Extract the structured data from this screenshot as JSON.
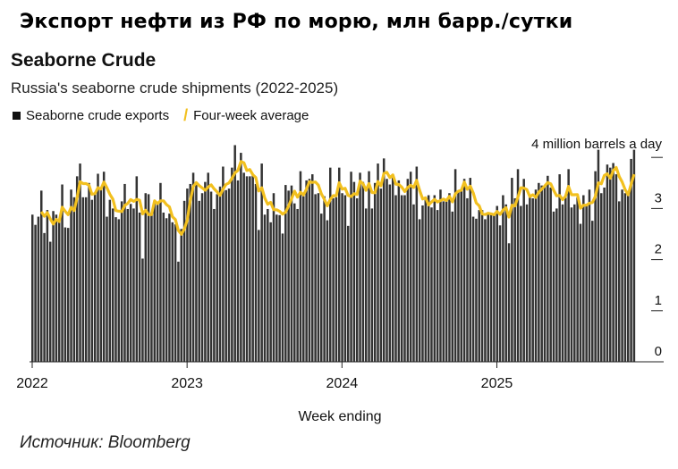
{
  "header": {
    "ru_title": "Экспорт нефти из РФ по морю, млн барр./сутки",
    "source": "Источник: Bloomberg"
  },
  "chart_data": {
    "type": "bar",
    "title": "Seaborne Crude",
    "subtitle": "Russia's seaborne crude shipments (2022-2025)",
    "xlabel": "Week ending",
    "ylabel": "",
    "y_unit_label": "4 million barrels a day",
    "ylim": [
      0,
      4
    ],
    "y_ticks": [
      "0",
      "1",
      "2",
      "3"
    ],
    "x_tick_labels": [
      "2022",
      "2023",
      "2024",
      "2025"
    ],
    "legend": [
      {
        "name": "Seaborne crude exports",
        "mark": "square",
        "color": "#222222"
      },
      {
        "name": "Four-week average",
        "mark": "line",
        "color": "#f2c01f"
      }
    ],
    "legend_position": "top-left",
    "grid": false,
    "average_window_weeks": 4,
    "series": [
      {
        "name": "Seaborne crude exports",
        "type": "bar",
        "color": "#333333",
        "values": [
          2.88,
          2.68,
          2.84,
          3.35,
          2.52,
          2.97,
          2.35,
          2.95,
          2.88,
          2.8,
          3.47,
          2.63,
          2.62,
          3.37,
          3.22,
          3.63,
          3.88,
          3.22,
          3.22,
          3.5,
          3.17,
          3.28,
          3.68,
          3.39,
          3.72,
          2.84,
          3.17,
          3.0,
          2.83,
          2.79,
          3.14,
          3.48,
          2.99,
          3.09,
          3.0,
          3.63,
          2.92,
          2.02,
          3.3,
          3.28,
          2.92,
          3.1,
          3.08,
          3.5,
          2.92,
          2.81,
          2.9,
          2.73,
          2.69,
          1.96,
          2.6,
          3.15,
          3.39,
          3.48,
          3.7,
          3.46,
          3.15,
          3.3,
          3.52,
          3.7,
          3.33,
          2.99,
          3.28,
          3.43,
          3.82,
          3.36,
          3.39,
          3.8,
          4.24,
          3.55,
          4.09,
          3.7,
          3.63,
          3.63,
          3.68,
          3.48,
          2.58,
          3.88,
          2.88,
          2.99,
          2.73,
          3.3,
          2.88,
          2.87,
          2.51,
          3.46,
          3.35,
          3.45,
          3.1,
          2.99,
          3.73,
          3.24,
          3.55,
          3.58,
          3.67,
          3.28,
          3.3,
          2.9,
          3.24,
          2.77,
          3.8,
          3.2,
          3.22,
          3.8,
          3.3,
          3.26,
          2.66,
          3.72,
          3.52,
          3.2,
          3.7,
          3.52,
          3.0,
          3.73,
          3.0,
          3.5,
          3.88,
          3.39,
          3.98,
          3.58,
          3.47,
          3.6,
          3.26,
          3.55,
          3.26,
          3.26,
          3.58,
          3.72,
          3.08,
          3.82,
          2.79,
          3.06,
          3.17,
          3.26,
          3.02,
          3.26,
          2.97,
          3.37,
          3.14,
          3.14,
          3.3,
          2.94,
          3.77,
          3.35,
          3.37,
          3.58,
          3.2,
          3.6,
          2.84,
          2.8,
          2.97,
          2.97,
          2.79,
          2.9,
          2.92,
          2.9,
          3.05,
          2.67,
          3.26,
          3.08,
          2.32,
          3.6,
          3.2,
          3.77,
          3.05,
          3.58,
          3.08,
          3.22,
          3.2,
          3.37,
          3.5,
          3.45,
          3.44,
          3.64,
          3.41,
          2.94,
          3.0,
          3.67,
          3.08,
          3.21,
          3.77,
          3.02,
          3.08,
          3.22,
          2.7,
          3.26,
          3.08,
          3.37,
          2.76,
          3.73,
          4.15,
          3.3,
          3.41,
          3.86,
          3.8,
          3.89,
          3.67,
          3.14,
          3.37,
          3.3,
          3.26,
          3.97,
          4.15
        ]
      },
      {
        "name": "Four-week average",
        "type": "line",
        "color": "#f2c01f"
      }
    ]
  }
}
